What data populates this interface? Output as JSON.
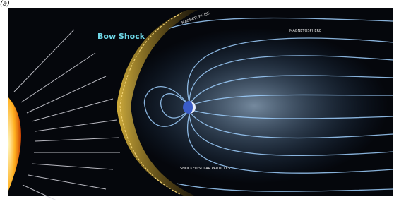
{
  "label": "(a)",
  "annotations": {
    "bow_shock": "Bow Shock",
    "magnetopause": "MAGNETOPAUSE",
    "magnetosphere": "MAGNETOSPHERE",
    "shocked_solar_particles": "SHOCKED SOLAR PARTICLES"
  }
}
